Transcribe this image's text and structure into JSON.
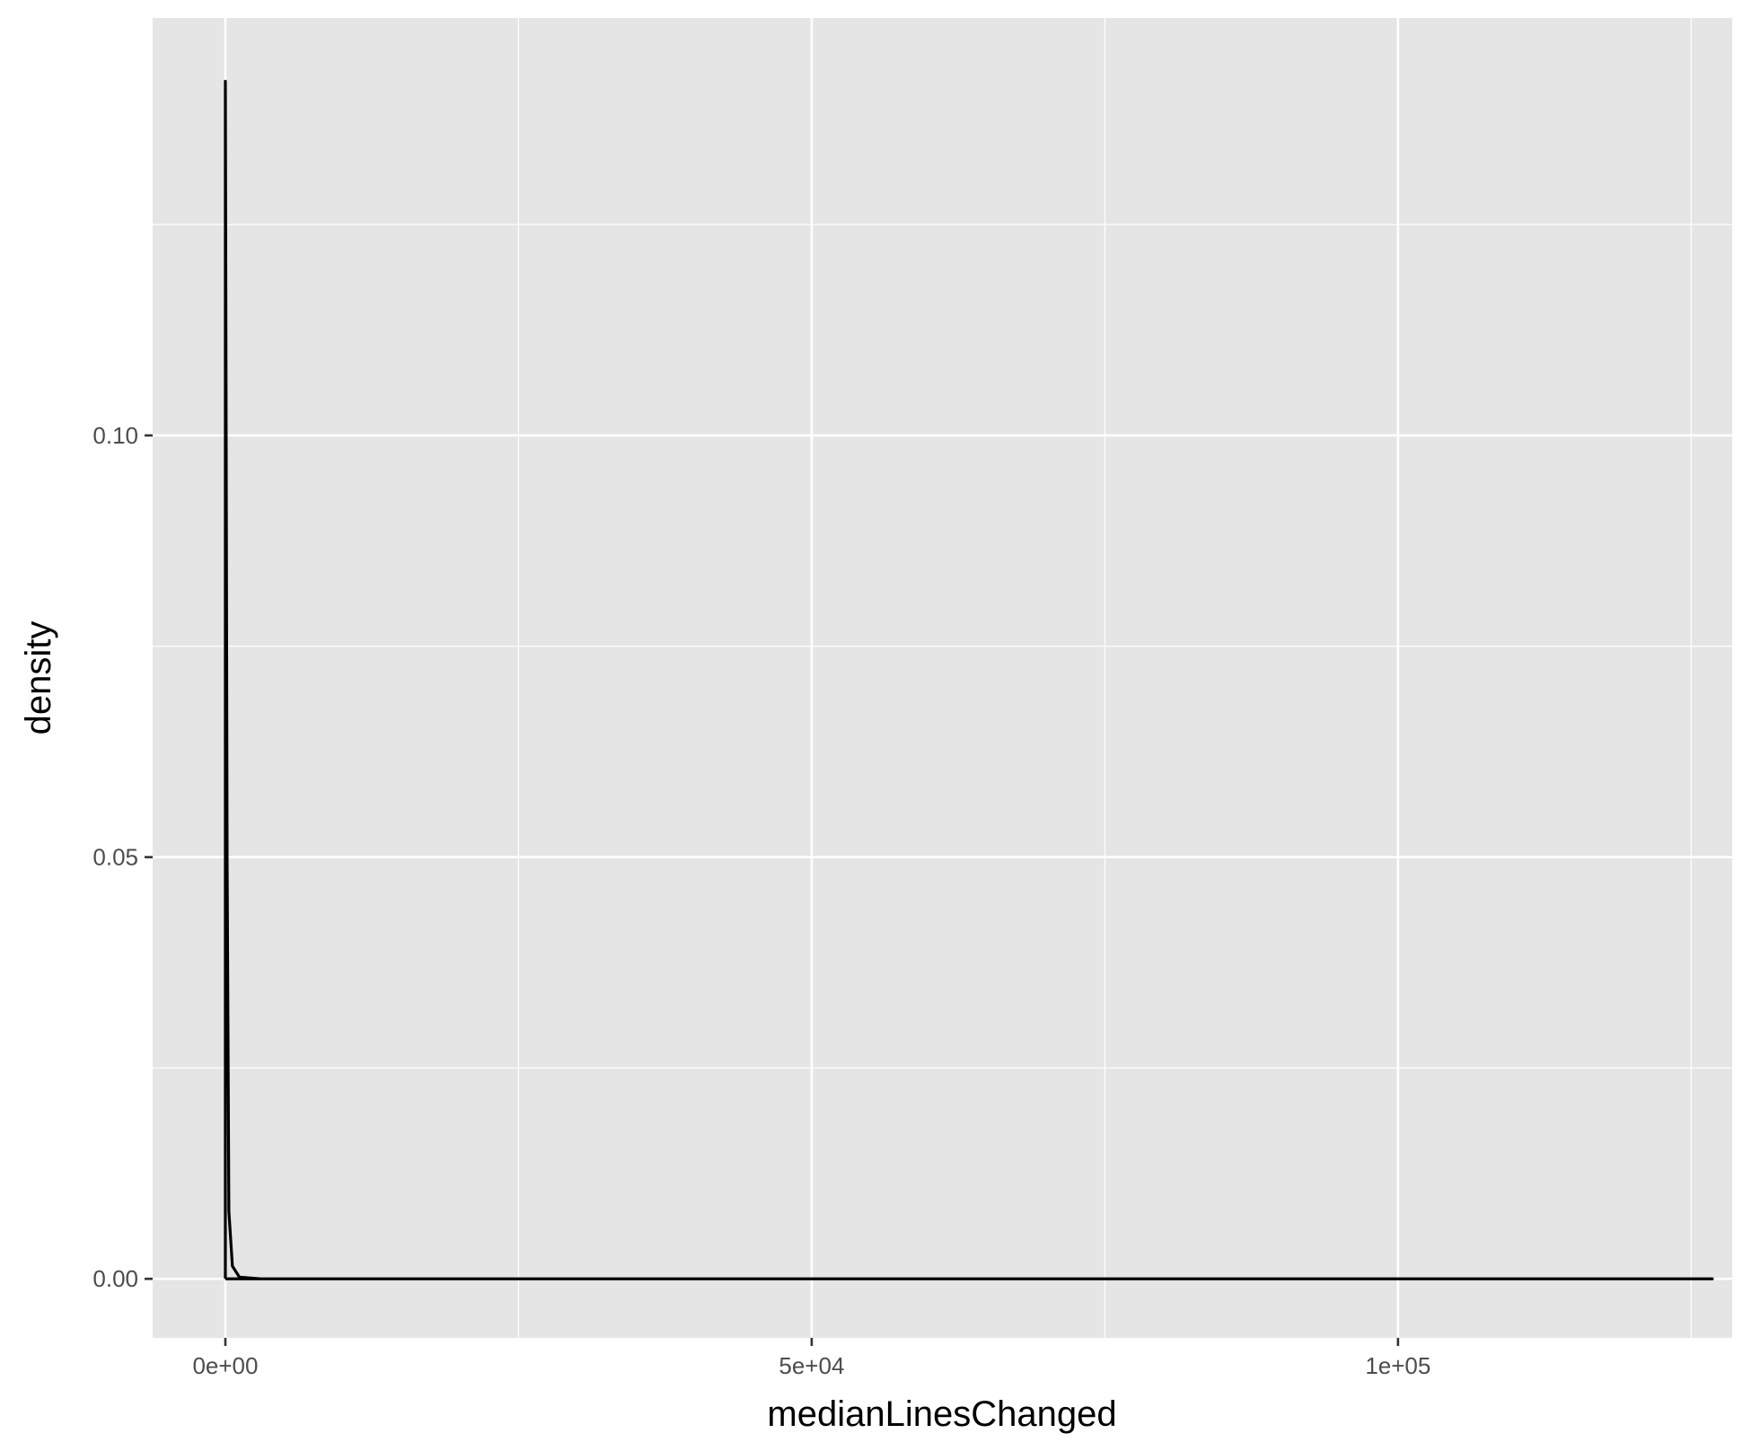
{
  "chart_data": {
    "type": "line",
    "title": "",
    "xlabel": "medianLinesChanged",
    "ylabel": "density",
    "xlim": [
      -6200,
      128500
    ],
    "ylim": [
      -0.007,
      0.1495
    ],
    "x_ticks": [
      0,
      50000,
      100000
    ],
    "x_tick_labels": [
      "0e+00",
      "5e+04",
      "1e+05"
    ],
    "x_minor_ticks": [
      25000,
      75000,
      125000
    ],
    "y_ticks": [
      0.0,
      0.05,
      0.1
    ],
    "y_tick_labels": [
      "0.00",
      "0.05",
      "0.10"
    ],
    "y_minor_ticks": [
      0.025,
      0.075,
      0.125
    ],
    "grid": true,
    "panel_background": "#e5e5e5",
    "grid_color": "#ffffff",
    "line_color": "#000000",
    "series": [
      {
        "points": [
          [
            0,
            0
          ],
          [
            0,
            0.142
          ],
          [
            150,
            0.05
          ],
          [
            300,
            0.008
          ],
          [
            600,
            0.0015
          ],
          [
            1200,
            0.0002
          ],
          [
            3000,
            0
          ],
          [
            126800,
            0
          ],
          [
            0,
            0
          ]
        ]
      }
    ]
  }
}
